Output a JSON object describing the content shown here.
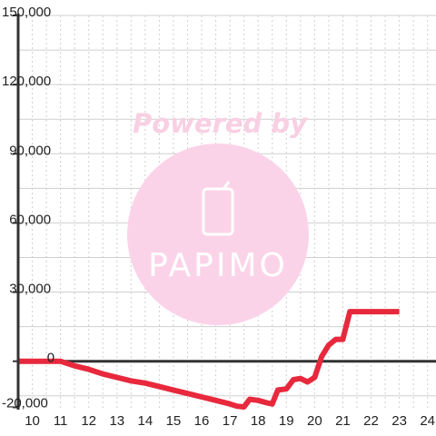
{
  "chart_data": {
    "type": "line",
    "title": "",
    "xlabel": "",
    "ylabel": "",
    "xlim": [
      9.5,
      24.3
    ],
    "ylim": [
      -21000,
      150000
    ],
    "x_ticks": [
      10,
      11,
      12,
      13,
      14,
      15,
      16,
      17,
      18,
      19,
      20,
      21,
      22,
      23,
      24
    ],
    "y_ticks": [
      -20000,
      0,
      30000,
      60000,
      90000,
      120000,
      150000
    ],
    "y_tick_labels": [
      "-20,000",
      "0",
      "30,000",
      "60,000",
      "90,000",
      "120,000",
      "150,000"
    ],
    "grid": true,
    "series": [
      {
        "color": "#e8283c",
        "points": [
          [
            9.5,
            0
          ],
          [
            10,
            0
          ],
          [
            10.5,
            0
          ],
          [
            11,
            0
          ],
          [
            11.5,
            -2000
          ],
          [
            12,
            -3500
          ],
          [
            12.5,
            -5500
          ],
          [
            13,
            -7000
          ],
          [
            13.5,
            -8500
          ],
          [
            14,
            -9500
          ],
          [
            14.5,
            -11000
          ],
          [
            15,
            -12500
          ],
          [
            15.5,
            -14000
          ],
          [
            16,
            -15500
          ],
          [
            16.5,
            -17000
          ],
          [
            17,
            -18500
          ],
          [
            17.25,
            -19500
          ],
          [
            17.5,
            -19800
          ],
          [
            17.7,
            -16500
          ],
          [
            18,
            -17000
          ],
          [
            18.3,
            -18000
          ],
          [
            18.5,
            -18500
          ],
          [
            18.7,
            -12500
          ],
          [
            19,
            -12000
          ],
          [
            19.25,
            -8000
          ],
          [
            19.5,
            -7500
          ],
          [
            19.75,
            -9000
          ],
          [
            20,
            -7000
          ],
          [
            20.25,
            2000
          ],
          [
            20.5,
            7000
          ],
          [
            20.75,
            9500
          ],
          [
            21,
            9500
          ],
          [
            21.25,
            21500
          ],
          [
            22,
            21500
          ],
          [
            22.5,
            21500
          ],
          [
            23,
            21500
          ]
        ]
      }
    ],
    "watermark": {
      "text": "Powered by",
      "brand": "PAPIMO"
    }
  }
}
